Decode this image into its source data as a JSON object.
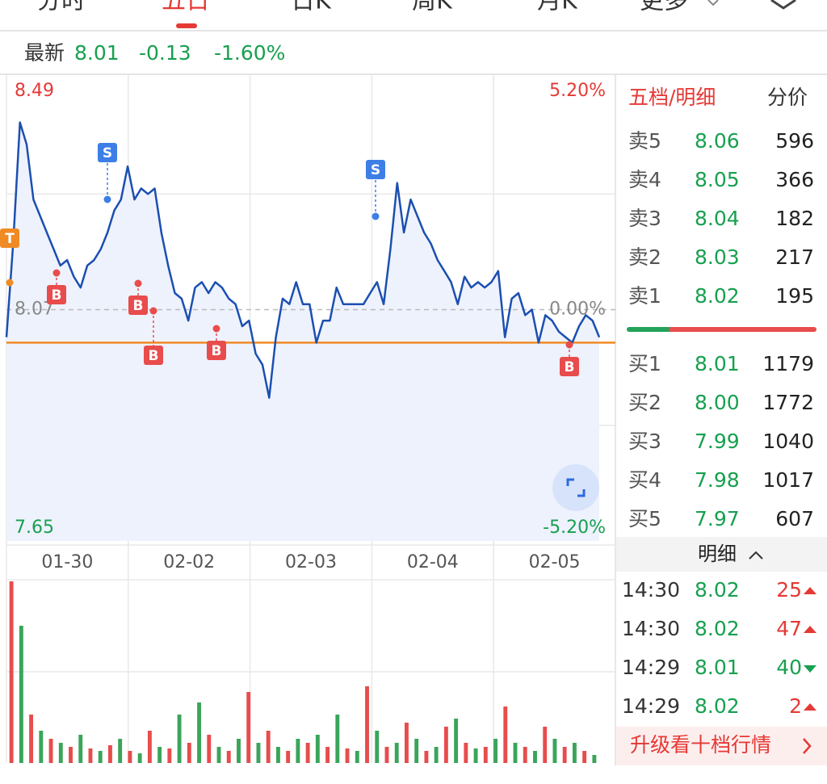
{
  "tabs": [
    "分时",
    "五日",
    "日K",
    "周K",
    "月K",
    "更多"
  ],
  "quote": {
    "label": "最新",
    "price": "8.01",
    "change": "-0.13",
    "pct": "-1.60%"
  },
  "chart_data": [
    {
      "type": "line",
      "color": "#1c4fb0",
      "values": [
        8.02,
        8.19,
        8.41,
        8.37,
        8.27,
        8.24,
        8.21,
        8.18,
        8.15,
        8.16,
        8.13,
        8.11,
        8.15,
        8.16,
        8.18,
        8.21,
        8.25,
        8.27,
        8.33,
        8.27,
        8.29,
        8.28,
        8.29,
        8.21,
        8.15,
        8.1,
        8.09,
        8.05,
        8.11,
        8.12,
        8.1,
        8.12,
        8.11,
        8.09,
        8.08,
        8.04,
        8.05,
        7.99,
        7.97,
        7.91,
        8.02,
        8.09,
        8.08,
        8.12,
        8.08,
        8.08,
        8.01,
        8.05,
        8.05,
        8.11,
        8.08,
        8.08,
        8.08,
        8.08,
        8.1,
        8.12,
        8.08,
        8.18,
        8.3,
        8.21,
        8.27,
        8.24,
        8.21,
        8.19,
        8.16,
        8.14,
        8.12,
        8.08,
        8.13,
        8.11,
        8.12,
        8.11,
        8.12,
        8.14,
        8.02,
        8.09,
        8.1,
        8.06,
        8.07,
        8.01,
        8.06,
        8.05,
        8.03,
        8.02,
        8.01,
        8.04,
        8.06,
        8.05,
        8.02
      ],
      "ylim": [
        7.65,
        8.49
      ],
      "yticks": [
        7.65,
        8.07,
        8.49
      ],
      "y2lim": [
        -5.2,
        5.2
      ],
      "y2ticks": [
        {
          "value": -5.2,
          "label": "-5.20%"
        },
        {
          "value": 0,
          "label": "0.00%"
        },
        {
          "value": 5.2,
          "label": "5.20%"
        }
      ],
      "days": [
        "01-30",
        "02-02",
        "02-03",
        "02-04",
        "02-05"
      ],
      "reference_line": 8.01,
      "markers": [
        "T",
        "S",
        "S",
        "B",
        "B",
        "B",
        "B",
        "B"
      ],
      "grid": true
    },
    {
      "type": "bar",
      "colors": [
        "#e84c4c",
        "#3aa55a"
      ],
      "values": [
        225,
        170,
        60,
        40,
        30,
        25,
        20,
        35,
        18,
        15,
        22,
        30,
        15,
        12,
        40,
        20,
        18,
        60,
        25,
        75,
        35,
        20,
        15,
        30,
        88,
        25,
        40,
        20,
        15,
        30,
        25,
        35,
        20,
        60,
        18,
        15,
        95,
        40,
        20,
        25,
        50,
        30,
        15,
        20,
        45,
        55,
        25,
        18,
        20,
        30,
        70,
        25,
        20,
        15,
        45,
        30,
        20,
        25,
        15,
        10
      ]
    }
  ],
  "order_book": {
    "tab": "五档/明细",
    "tab2": "分价",
    "asks": [
      {
        "label": "卖5",
        "price": "8.06",
        "vol": "596"
      },
      {
        "label": "卖4",
        "price": "8.05",
        "vol": "366"
      },
      {
        "label": "卖3",
        "price": "8.04",
        "vol": "182"
      },
      {
        "label": "卖2",
        "price": "8.03",
        "vol": "217"
      },
      {
        "label": "卖1",
        "price": "8.02",
        "vol": "195"
      }
    ],
    "bids": [
      {
        "label": "买1",
        "price": "8.01",
        "vol": "1179"
      },
      {
        "label": "买2",
        "price": "8.00",
        "vol": "1772"
      },
      {
        "label": "买3",
        "price": "7.99",
        "vol": "1040"
      },
      {
        "label": "买4",
        "price": "7.98",
        "vol": "1017"
      },
      {
        "label": "买5",
        "price": "7.97",
        "vol": "607"
      }
    ]
  },
  "details": {
    "title": "明细",
    "rows": [
      {
        "time": "14:30",
        "price": "8.02",
        "vol": "25",
        "dir": "up"
      },
      {
        "time": "14:30",
        "price": "8.02",
        "vol": "47",
        "dir": "up"
      },
      {
        "time": "14:29",
        "price": "8.01",
        "vol": "40",
        "dir": "down"
      },
      {
        "time": "14:29",
        "price": "8.02",
        "vol": "2",
        "dir": "up"
      }
    ]
  },
  "upgrade": "升级看十档行情"
}
